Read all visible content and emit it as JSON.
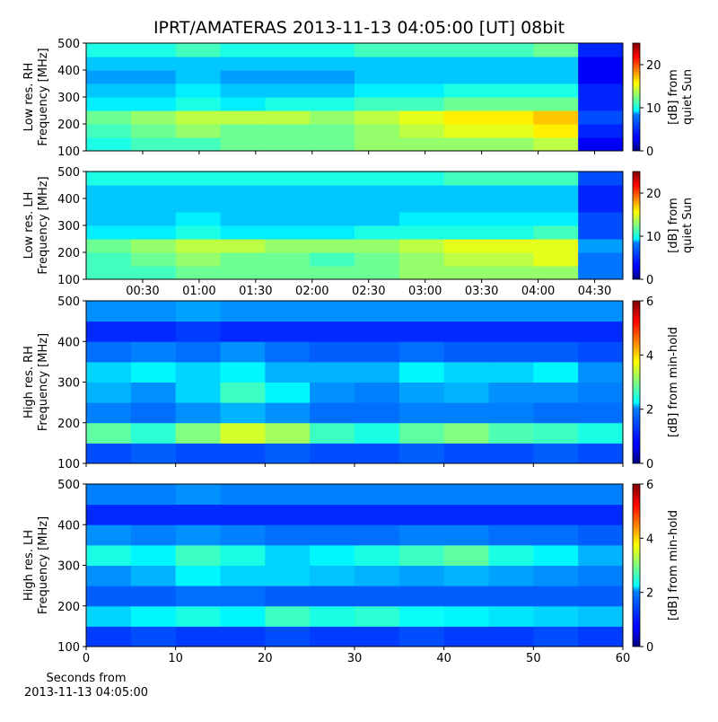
{
  "chart_data": [
    {
      "type": "heatmap",
      "title": "IPRT/AMATERAS 2013-11-13 04:05:00 [UT]   08bit",
      "ylabel": [
        "Low res. RH",
        "Frequency [MHz]"
      ],
      "xlim": [
        0,
        285
      ],
      "ylim": [
        100,
        500
      ],
      "yticks": [
        100,
        200,
        300,
        400,
        500
      ],
      "colorbar": {
        "label": [
          "[dB] from",
          "quiet Sun"
        ],
        "lim": [
          0,
          25
        ],
        "ticks": [
          0,
          10,
          20
        ]
      },
      "z": [
        [
          10,
          11,
          11,
          12,
          12,
          12,
          13,
          13,
          13,
          13,
          14,
          3
        ],
        [
          11,
          12,
          13,
          12,
          12,
          12,
          13,
          14,
          15,
          15,
          16,
          4
        ],
        [
          12,
          13,
          14,
          14,
          14,
          13,
          14,
          15,
          16,
          16,
          17,
          5
        ],
        [
          9,
          9,
          10,
          9,
          10,
          10,
          11,
          11,
          12,
          12,
          12,
          4
        ],
        [
          8,
          8,
          9,
          8,
          8,
          8,
          9,
          9,
          10,
          10,
          10,
          4
        ],
        [
          7,
          7,
          8,
          7,
          7,
          7,
          8,
          8,
          8,
          8,
          8,
          3
        ],
        [
          8,
          8,
          8,
          8,
          8,
          8,
          8,
          8,
          8,
          8,
          8,
          3
        ],
        [
          10,
          10,
          11,
          10,
          10,
          10,
          11,
          11,
          11,
          11,
          12,
          4
        ]
      ]
    },
    {
      "type": "heatmap",
      "ylabel": [
        "Low res. LH",
        "Frequency [MHz]"
      ],
      "xlim": [
        0,
        285
      ],
      "ylim": [
        100,
        500
      ],
      "yticks": [
        100,
        200,
        300,
        400,
        500
      ],
      "xticks": [
        {
          "value": 30,
          "label": "00:30"
        },
        {
          "value": 60,
          "label": "01:00"
        },
        {
          "value": 90,
          "label": "01:30"
        },
        {
          "value": 120,
          "label": "02:00"
        },
        {
          "value": 150,
          "label": "02:30"
        },
        {
          "value": 180,
          "label": "03:00"
        },
        {
          "value": 210,
          "label": "03:30"
        },
        {
          "value": 240,
          "label": "04:00"
        },
        {
          "value": 270,
          "label": "04:30"
        }
      ],
      "colorbar": {
        "label": [
          "[dB] from",
          "quiet Sun"
        ],
        "lim": [
          0,
          25
        ],
        "ticks": [
          0,
          10,
          20
        ]
      },
      "z": [
        [
          11,
          11,
          12,
          12,
          12,
          12,
          12,
          13,
          13,
          13,
          13,
          6
        ],
        [
          11,
          12,
          13,
          12,
          12,
          11,
          12,
          13,
          14,
          14,
          15,
          6
        ],
        [
          12,
          13,
          14,
          14,
          13,
          13,
          13,
          14,
          15,
          15,
          15,
          7
        ],
        [
          9,
          9,
          10,
          9,
          9,
          9,
          10,
          10,
          10,
          10,
          11,
          5
        ],
        [
          8,
          8,
          9,
          8,
          8,
          8,
          8,
          9,
          9,
          9,
          9,
          5
        ],
        [
          8,
          8,
          8,
          8,
          8,
          8,
          8,
          8,
          8,
          8,
          8,
          4
        ],
        [
          8,
          8,
          8,
          8,
          8,
          8,
          8,
          8,
          8,
          8,
          8,
          4
        ],
        [
          10,
          10,
          10,
          10,
          10,
          10,
          10,
          10,
          11,
          11,
          11,
          5
        ]
      ]
    },
    {
      "type": "heatmap",
      "ylabel": [
        "High res. RH",
        "Frequency [MHz]"
      ],
      "xlim": [
        0,
        60
      ],
      "ylim": [
        100,
        500
      ],
      "yticks": [
        100,
        200,
        300,
        400,
        500
      ],
      "colorbar": {
        "label": [
          "[dB] from min-hold"
        ],
        "lim": [
          0,
          6
        ],
        "ticks": [
          0,
          2,
          4,
          6
        ]
      },
      "z": [
        [
          1.2,
          1.3,
          1.2,
          1.2,
          1.3,
          1.2,
          1.2,
          1.3,
          1.2,
          1.2,
          1.3,
          1.2
        ],
        [
          2.8,
          2.5,
          3.0,
          3.5,
          3.2,
          2.6,
          2.4,
          2.8,
          3.0,
          2.7,
          2.6,
          2.4
        ],
        [
          1.5,
          1.4,
          1.6,
          1.8,
          1.6,
          1.4,
          1.4,
          1.5,
          1.5,
          1.5,
          1.4,
          1.4
        ],
        [
          1.8,
          1.6,
          2.0,
          2.6,
          2.2,
          1.6,
          1.5,
          1.7,
          1.8,
          1.6,
          1.6,
          1.5
        ],
        [
          2.0,
          2.2,
          2.0,
          2.2,
          1.8,
          1.8,
          1.8,
          2.2,
          2.0,
          2.0,
          2.2,
          1.6
        ],
        [
          1.4,
          1.5,
          1.4,
          1.6,
          1.4,
          1.3,
          1.3,
          1.4,
          1.3,
          1.3,
          1.3,
          1.2
        ],
        [
          1.0,
          1.0,
          1.1,
          1.0,
          1.0,
          1.0,
          1.0,
          1.0,
          1.0,
          1.0,
          1.0,
          1.0
        ],
        [
          1.6,
          1.6,
          1.7,
          1.6,
          1.6,
          1.6,
          1.6,
          1.6,
          1.6,
          1.6,
          1.6,
          1.6
        ]
      ]
    },
    {
      "type": "heatmap",
      "ylabel": [
        "High res. LH",
        "Frequency [MHz]"
      ],
      "xlim": [
        0,
        60
      ],
      "ylim": [
        100,
        500
      ],
      "yticks": [
        100,
        200,
        300,
        400,
        500
      ],
      "xticks": [
        0,
        10,
        20,
        30,
        40,
        50,
        60
      ],
      "xlabel": [
        "Seconds from",
        "2013-11-13 04:05:00"
      ],
      "colorbar": {
        "label": [
          "[dB] from min-hold"
        ],
        "lim": [
          0,
          6
        ],
        "ticks": [
          0,
          2,
          4,
          6
        ]
      },
      "z": [
        [
          1.1,
          1.2,
          1.1,
          1.1,
          1.2,
          1.1,
          1.1,
          1.2,
          1.1,
          1.1,
          1.2,
          1.1
        ],
        [
          2.0,
          2.2,
          2.4,
          2.2,
          2.6,
          2.4,
          2.5,
          2.3,
          2.2,
          2.1,
          2.0,
          1.9
        ],
        [
          1.3,
          1.3,
          1.4,
          1.4,
          1.3,
          1.3,
          1.3,
          1.3,
          1.3,
          1.3,
          1.3,
          1.3
        ],
        [
          1.6,
          1.8,
          2.2,
          2.0,
          2.0,
          1.9,
          1.8,
          1.7,
          1.8,
          1.7,
          1.6,
          1.5
        ],
        [
          2.4,
          2.2,
          2.6,
          2.4,
          2.0,
          2.2,
          2.4,
          2.6,
          2.8,
          2.4,
          2.2,
          1.8
        ],
        [
          1.6,
          1.5,
          1.6,
          1.5,
          1.4,
          1.4,
          1.4,
          1.5,
          1.5,
          1.4,
          1.4,
          1.3
        ],
        [
          1.0,
          1.0,
          1.0,
          1.0,
          1.0,
          1.0,
          1.0,
          1.0,
          1.0,
          1.0,
          1.0,
          1.0
        ],
        [
          1.5,
          1.5,
          1.6,
          1.5,
          1.5,
          1.5,
          1.5,
          1.5,
          1.5,
          1.5,
          1.5,
          1.5
        ]
      ]
    }
  ]
}
